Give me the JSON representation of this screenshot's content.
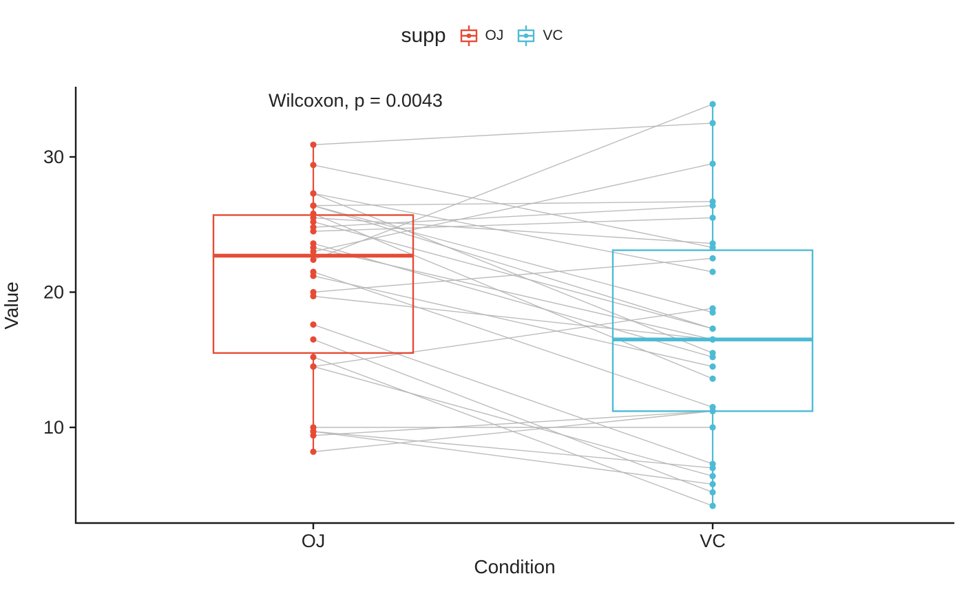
{
  "legend": {
    "title": "supp",
    "items": [
      {
        "label": "OJ",
        "color": "#E64B35"
      },
      {
        "label": "VC",
        "color": "#4DBBD5"
      }
    ]
  },
  "axes": {
    "y_title": "Value",
    "x_title": "Condition",
    "y_ticks": [
      10,
      20,
      30
    ],
    "x_categories": [
      "OJ",
      "VC"
    ]
  },
  "chart_data": {
    "type": "paired-boxplot",
    "title": "",
    "annotation": "Wilcoxon, p = 0.0043",
    "stat_test": "Wilcoxon",
    "p_value": 0.0043,
    "xlabel": "Condition",
    "ylabel": "Value",
    "ylim": [
      3.5,
      35
    ],
    "categories": [
      "OJ",
      "VC"
    ],
    "pair_line_color": "#b5b5b5",
    "axis_color": "#1a1a1a",
    "groups": [
      {
        "name": "OJ",
        "color": "#E64B35",
        "values": [
          15.2,
          21.5,
          17.6,
          9.7,
          14.5,
          10.0,
          8.2,
          9.4,
          16.5,
          9.7,
          19.7,
          23.3,
          23.6,
          26.4,
          20.0,
          25.2,
          25.8,
          21.2,
          14.5,
          27.3,
          25.5,
          26.4,
          22.4,
          24.5,
          24.8,
          30.9,
          26.4,
          27.3,
          29.4,
          23.0
        ],
        "box": {
          "whisker_min": 8.2,
          "q1": 15.5,
          "median": 22.7,
          "q3": 25.7,
          "whisker_max": 30.9
        }
      },
      {
        "name": "VC",
        "color": "#4DBBD5",
        "values": [
          4.2,
          11.5,
          7.3,
          5.8,
          6.4,
          10.0,
          11.2,
          11.2,
          5.2,
          7.0,
          16.5,
          16.5,
          15.2,
          17.3,
          22.5,
          17.3,
          13.6,
          14.5,
          18.8,
          15.5,
          23.6,
          18.5,
          33.9,
          25.5,
          26.4,
          32.5,
          26.7,
          21.5,
          23.3,
          29.5
        ],
        "box": {
          "whisker_min": 4.2,
          "q1": 11.2,
          "median": 16.5,
          "q3": 23.1,
          "whisker_max": 33.9
        }
      }
    ]
  }
}
